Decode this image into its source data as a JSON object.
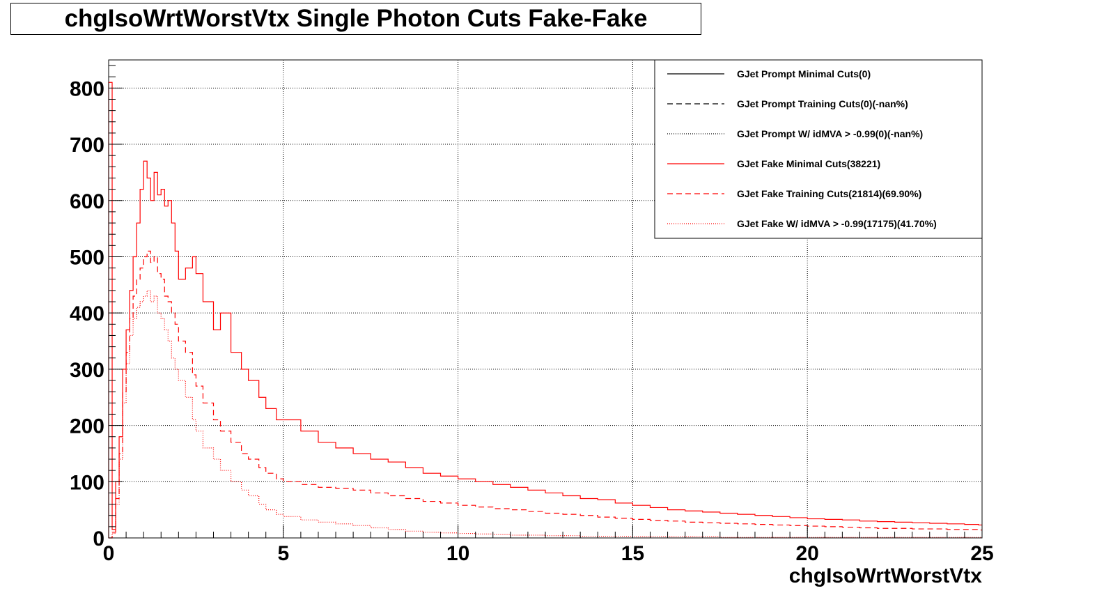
{
  "title": "chgIsoWrtWorstVtx Single Photon Cuts Fake-Fake",
  "colors": {
    "black": "#000000",
    "red": "#ff0000",
    "grid": "#000000"
  },
  "chart_data": {
    "type": "line",
    "title": "chgIsoWrtWorstVtx Single Photon Cuts Fake-Fake",
    "xlabel": "chgIsoWrtWorstVtx",
    "ylabel": "",
    "xlim": [
      0,
      25
    ],
    "ylim": [
      0,
      850
    ],
    "xticks": [
      "0",
      "5",
      "10",
      "15",
      "20",
      "25"
    ],
    "yticks": [
      "0",
      "100",
      "200",
      "300",
      "400",
      "500",
      "600",
      "700",
      "800"
    ],
    "grid": true,
    "legend_position": "top-right",
    "bin_width": 0.1,
    "series": [
      {
        "name": "GJet Prompt Minimal Cuts(0)",
        "color": "#000000",
        "style": "solid",
        "x": [],
        "values": []
      },
      {
        "name": "GJet Prompt Training Cuts(0)(-nan%)",
        "color": "#000000",
        "style": "dashed",
        "x": [],
        "values": []
      },
      {
        "name": "GJet Prompt W/ idMVA > -0.99(0)(-nan%)",
        "color": "#000000",
        "style": "dotted",
        "x": [],
        "values": []
      },
      {
        "name": "GJet Fake Minimal Cuts(38221)",
        "color": "#ff0000",
        "style": "solid",
        "x": [
          0,
          0.1,
          0.2,
          0.3,
          0.4,
          0.5,
          0.6,
          0.7,
          0.8,
          0.9,
          1.0,
          1.1,
          1.2,
          1.3,
          1.4,
          1.5,
          1.6,
          1.7,
          1.8,
          1.9,
          2.0,
          2.2,
          2.4,
          2.5,
          2.7,
          3.0,
          3.2,
          3.5,
          3.8,
          4.0,
          4.3,
          4.5,
          4.8,
          5.0,
          5.5,
          6.0,
          6.5,
          7.0,
          7.5,
          8.0,
          8.5,
          9.0,
          9.5,
          10.0,
          10.5,
          11.0,
          11.5,
          12.0,
          12.5,
          13.0,
          13.5,
          14.0,
          14.5,
          15.0,
          15.5,
          16.0,
          16.5,
          17.0,
          17.5,
          18.0,
          18.5,
          19.0,
          19.5,
          20.0,
          20.5,
          21.0,
          21.5,
          22.0,
          22.5,
          23.0,
          23.5,
          24.0,
          24.5,
          24.9
        ],
        "values": [
          810,
          15,
          100,
          180,
          300,
          370,
          440,
          500,
          560,
          620,
          670,
          640,
          600,
          650,
          610,
          620,
          590,
          600,
          560,
          510,
          460,
          480,
          500,
          470,
          420,
          370,
          400,
          330,
          300,
          280,
          250,
          230,
          210,
          210,
          190,
          170,
          160,
          150,
          140,
          135,
          125,
          115,
          110,
          105,
          100,
          95,
          90,
          85,
          80,
          75,
          70,
          68,
          62,
          58,
          54,
          50,
          48,
          46,
          44,
          42,
          40,
          38,
          36,
          34,
          33,
          32,
          30,
          29,
          28,
          27,
          26,
          25,
          24,
          23
        ]
      },
      {
        "name": "GJet Fake Training Cuts(21814)(69.90%)",
        "color": "#ff0000",
        "style": "dashed",
        "x": [
          0,
          0.1,
          0.2,
          0.3,
          0.4,
          0.5,
          0.6,
          0.7,
          0.8,
          0.9,
          1.0,
          1.1,
          1.2,
          1.3,
          1.4,
          1.5,
          1.6,
          1.7,
          1.8,
          1.9,
          2.0,
          2.2,
          2.4,
          2.5,
          2.7,
          3.0,
          3.2,
          3.5,
          3.8,
          4.0,
          4.3,
          4.5,
          4.8,
          5.0,
          5.5,
          6.0,
          6.5,
          7.0,
          7.5,
          8.0,
          8.5,
          9.0,
          9.5,
          10.0,
          10.5,
          11.0,
          11.5,
          12.0,
          12.5,
          13.0,
          13.5,
          14.0,
          14.5,
          15.0,
          15.5,
          16.0,
          16.5,
          17.0,
          17.5,
          18.0,
          18.5,
          19.0,
          19.5,
          20.0,
          20.5,
          21.0,
          21.5,
          22.0,
          22.5,
          23.0,
          23.5,
          24.0,
          24.5,
          24.9
        ],
        "values": [
          0,
          10,
          70,
          150,
          260,
          330,
          390,
          430,
          460,
          480,
          500,
          510,
          490,
          500,
          470,
          460,
          430,
          420,
          400,
          380,
          350,
          330,
          290,
          270,
          240,
          210,
          190,
          170,
          150,
          140,
          125,
          115,
          105,
          100,
          95,
          90,
          88,
          85,
          80,
          75,
          70,
          65,
          62,
          58,
          55,
          52,
          50,
          47,
          44,
          42,
          40,
          37,
          35,
          33,
          31,
          30,
          28,
          27,
          26,
          25,
          24,
          23,
          22,
          21,
          20,
          19,
          18,
          17,
          17,
          16,
          16,
          15,
          15,
          14
        ]
      },
      {
        "name": "GJet Fake W/ idMVA > -0.99(17175)(41.70%)",
        "color": "#ff0000",
        "style": "dotted",
        "x": [
          0,
          0.1,
          0.2,
          0.3,
          0.4,
          0.5,
          0.6,
          0.7,
          0.8,
          0.9,
          1.0,
          1.1,
          1.2,
          1.3,
          1.4,
          1.5,
          1.6,
          1.7,
          1.8,
          1.9,
          2.0,
          2.2,
          2.4,
          2.5,
          2.7,
          3.0,
          3.2,
          3.5,
          3.8,
          4.0,
          4.3,
          4.5,
          4.8,
          5.0,
          5.5,
          6.0,
          6.5,
          7.0,
          7.5,
          8.0,
          8.5,
          9.0,
          9.5,
          10.0,
          10.5,
          11.0,
          11.5,
          12.0,
          12.5,
          13.0,
          13.5,
          14.0,
          14.5,
          15.0,
          15.5,
          16.0,
          16.5,
          17.0,
          17.5,
          18.0,
          18.5,
          19.0,
          19.5,
          20.0,
          20.5,
          21.0,
          21.5,
          22.0,
          22.5,
          23.0,
          23.5,
          24.0,
          24.5,
          24.9
        ],
        "values": [
          0,
          8,
          60,
          140,
          240,
          310,
          360,
          390,
          410,
          420,
          430,
          440,
          420,
          430,
          400,
          390,
          370,
          350,
          320,
          300,
          280,
          250,
          210,
          190,
          160,
          140,
          120,
          100,
          85,
          75,
          60,
          50,
          42,
          38,
          32,
          28,
          25,
          22,
          18,
          15,
          12,
          10,
          9,
          8,
          7,
          6,
          5,
          5,
          4,
          4,
          3,
          3,
          3,
          2,
          2,
          2,
          2,
          2,
          1,
          1,
          1,
          1,
          1,
          1,
          1,
          1,
          1,
          1,
          1,
          1,
          1,
          1,
          1,
          1
        ]
      }
    ]
  }
}
